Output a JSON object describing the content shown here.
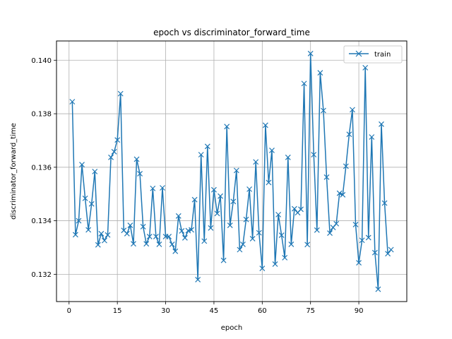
{
  "chart_data": {
    "type": "line",
    "title": "epoch vs discriminator_forward_time",
    "xlabel": "epoch",
    "ylabel": "discriminator_forward_time",
    "xlim": [
      -3.9,
      104.9
    ],
    "ylim": [
      0.13098,
      0.14072
    ],
    "xticks": [
      0,
      15,
      30,
      45,
      60,
      75,
      90
    ],
    "xtick_labels": [
      "0",
      "15",
      "30",
      "45",
      "60",
      "75",
      "90"
    ],
    "yticks": [
      0.132,
      0.134,
      0.136,
      0.138,
      0.14
    ],
    "ytick_labels": [
      "0.132",
      "0.134",
      "0.136",
      "0.138",
      "0.140"
    ],
    "grid": true,
    "legend_position": "top-right",
    "series": [
      {
        "name": "train",
        "color": "#1f77b4",
        "marker": "x",
        "x": [
          1,
          2,
          3,
          4,
          5,
          6,
          7,
          8,
          9,
          10,
          11,
          12,
          13,
          14,
          15,
          16,
          17,
          18,
          19,
          20,
          21,
          22,
          23,
          24,
          25,
          26,
          27,
          28,
          29,
          30,
          31,
          32,
          33,
          34,
          35,
          36,
          37,
          38,
          39,
          40,
          41,
          42,
          43,
          44,
          45,
          46,
          47,
          48,
          49,
          50,
          51,
          52,
          53,
          54,
          55,
          56,
          57,
          58,
          59,
          60,
          61,
          62,
          63,
          64,
          65,
          66,
          67,
          68,
          69,
          70,
          71,
          72,
          73,
          74,
          75,
          76,
          77,
          78,
          79,
          80,
          81,
          82,
          83,
          84,
          85,
          86,
          87,
          88,
          89,
          90,
          91,
          92,
          93,
          94,
          95,
          96,
          97,
          98,
          99,
          100
        ],
        "y": [
          0.13845,
          0.13348,
          0.134,
          0.1361,
          0.13484,
          0.13366,
          0.13463,
          0.13584,
          0.1331,
          0.13352,
          0.13326,
          0.13347,
          0.13637,
          0.13658,
          0.13702,
          0.13875,
          0.13364,
          0.13352,
          0.13383,
          0.13314,
          0.1363,
          0.13576,
          0.13378,
          0.13314,
          0.13341,
          0.13521,
          0.13341,
          0.13312,
          0.13523,
          0.13341,
          0.13341,
          0.13312,
          0.13286,
          0.13418,
          0.13362,
          0.13336,
          0.13363,
          0.13366,
          0.13479,
          0.1318,
          0.13647,
          0.13324,
          0.13678,
          0.13373,
          0.13516,
          0.13427,
          0.13492,
          0.13252,
          0.13752,
          0.13383,
          0.13472,
          0.13588,
          0.13292,
          0.13312,
          0.13405,
          0.13518,
          0.13333,
          0.1362,
          0.13355,
          0.13222,
          0.13757,
          0.13543,
          0.13663,
          0.13238,
          0.13423,
          0.13346,
          0.13262,
          0.13637,
          0.13312,
          0.13445,
          0.1343,
          0.13443,
          0.13913,
          0.13311,
          0.14025,
          0.13647,
          0.13365,
          0.13953,
          0.13812,
          0.13563,
          0.13354,
          0.13375,
          0.13389,
          0.13503,
          0.13497,
          0.13604,
          0.13723,
          0.13815,
          0.13386,
          0.13243,
          0.13327,
          0.13972,
          0.13337,
          0.13713,
          0.13281,
          0.13144,
          0.13761,
          0.13466,
          0.13277,
          0.13292
        ]
      }
    ]
  }
}
